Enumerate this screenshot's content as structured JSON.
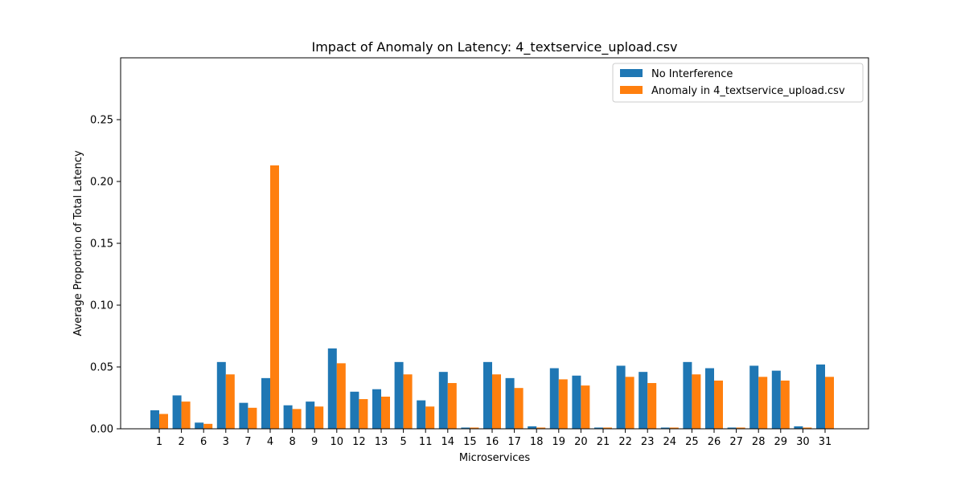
{
  "chart_data": {
    "type": "bar",
    "title": "Impact of Anomaly on Latency: 4_textservice_upload.csv",
    "xlabel": "Microservices",
    "ylabel": "Average Proportion of Total Latency",
    "ylim": [
      0,
      0.3
    ],
    "yticks": [
      "0.00",
      "0.05",
      "0.10",
      "0.15",
      "0.20",
      "0.25"
    ],
    "grid": false,
    "legend_position": "top-right",
    "categories": [
      "1",
      "2",
      "6",
      "3",
      "7",
      "4",
      "8",
      "9",
      "10",
      "12",
      "13",
      "5",
      "11",
      "14",
      "15",
      "16",
      "17",
      "18",
      "19",
      "20",
      "21",
      "22",
      "23",
      "24",
      "25",
      "26",
      "27",
      "28",
      "29",
      "30",
      "31"
    ],
    "series": [
      {
        "name": "No Interference",
        "color": "#1f77b4",
        "values": [
          0.015,
          0.027,
          0.005,
          0.054,
          0.021,
          0.041,
          0.019,
          0.022,
          0.065,
          0.03,
          0.032,
          0.054,
          0.023,
          0.046,
          0.001,
          0.054,
          0.041,
          0.002,
          0.049,
          0.043,
          0.001,
          0.051,
          0.046,
          0.001,
          0.054,
          0.049,
          0.001,
          0.051,
          0.047,
          0.002,
          0.052
        ]
      },
      {
        "name": "Anomaly in 4_textservice_upload.csv",
        "color": "#ff7f0e",
        "values": [
          0.012,
          0.022,
          0.004,
          0.044,
          0.017,
          0.213,
          0.016,
          0.018,
          0.053,
          0.024,
          0.026,
          0.044,
          0.018,
          0.037,
          0.001,
          0.044,
          0.033,
          0.001,
          0.04,
          0.035,
          0.001,
          0.042,
          0.037,
          0.001,
          0.044,
          0.039,
          0.001,
          0.042,
          0.039,
          0.001,
          0.042
        ]
      }
    ]
  }
}
